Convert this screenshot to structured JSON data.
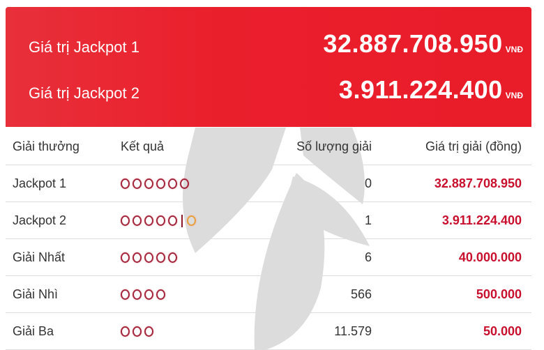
{
  "banner": {
    "items": [
      {
        "label": "Giá trị Jackpot 1",
        "value": "32.887.708.950",
        "currency": "VNĐ"
      },
      {
        "label": "Giá trị Jackpot 2",
        "value": "3.911.224.400",
        "currency": "VNĐ"
      }
    ]
  },
  "table": {
    "headers": [
      "Giải thưởng",
      "Kết quả",
      "Số lượng giải",
      "Giá trị giải (đồng)"
    ],
    "rows": [
      {
        "prize": "Jackpot 1",
        "balls": 6,
        "bonus": false,
        "count": "0",
        "value": "32.887.708.950"
      },
      {
        "prize": "Jackpot 2",
        "balls": 5,
        "bonus": true,
        "count": "1",
        "value": "3.911.224.400"
      },
      {
        "prize": "Giải Nhất",
        "balls": 5,
        "bonus": false,
        "count": "6",
        "value": "40.000.000"
      },
      {
        "prize": "Giải Nhì",
        "balls": 4,
        "bonus": false,
        "count": "566",
        "value": "500.000"
      },
      {
        "prize": "Giải Ba",
        "balls": 3,
        "bonus": false,
        "count": "11.579",
        "value": "50.000"
      }
    ]
  },
  "colors": {
    "banner": "#e91c2a",
    "ball": "#a3263c",
    "bonus_ball": "#e8a13a",
    "prize_value": "#c8102e"
  }
}
